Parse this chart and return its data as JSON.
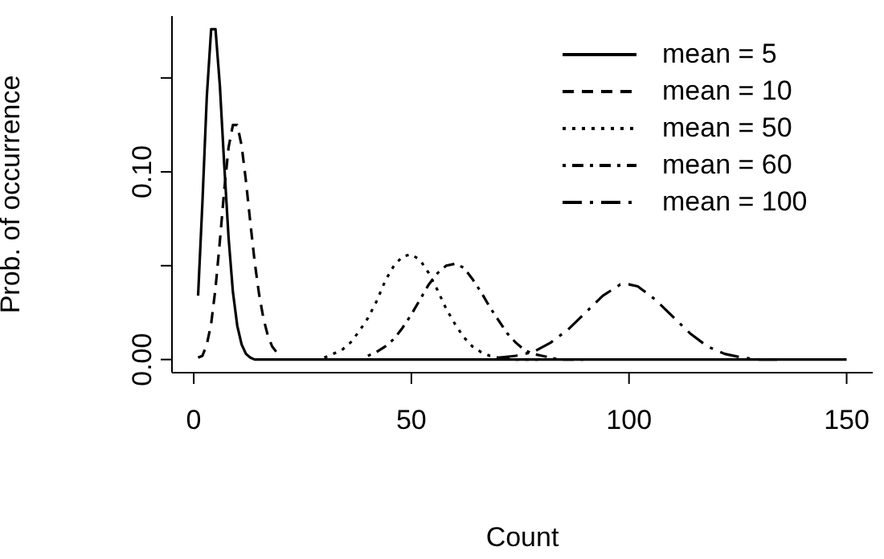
{
  "chart_data": {
    "type": "line",
    "xlabel": "Count",
    "ylabel": "Prob. of occurrence",
    "xlim": [
      -5,
      156
    ],
    "ylim": [
      -0.007,
      0.183
    ],
    "xticks": [
      0,
      50,
      100,
      150
    ],
    "yticks": [
      {
        "value": 0,
        "label": "0.00"
      },
      {
        "value": 0.05,
        "label": null
      },
      {
        "value": 0.1,
        "label": "0.10"
      },
      {
        "value": 0.15,
        "label": null
      }
    ],
    "legend": "top right",
    "marker": "none",
    "series": [
      {
        "name": "mean = 5",
        "color": "#000000",
        "line_style": "solid",
        "x": [
          1,
          2,
          3,
          4,
          5,
          6,
          7,
          8,
          9,
          10,
          11,
          12,
          13,
          14,
          15,
          20,
          150
        ],
        "values": [
          0.034,
          0.084,
          0.14,
          0.176,
          0.176,
          0.146,
          0.104,
          0.065,
          0.036,
          0.018,
          0.008,
          0.003,
          0.001,
          0,
          0,
          0,
          0
        ]
      },
      {
        "name": "mean = 10",
        "color": "#000000",
        "line_style": "dashed",
        "x": [
          1,
          2,
          3,
          4,
          5,
          6,
          7,
          8,
          9,
          10,
          11,
          12,
          13,
          14,
          15,
          16,
          17,
          18,
          19,
          20
        ],
        "values": [
          0.001,
          0.002,
          0.008,
          0.019,
          0.038,
          0.063,
          0.09,
          0.113,
          0.125,
          0.125,
          0.114,
          0.095,
          0.073,
          0.052,
          0.035,
          0.022,
          0.013,
          0.007,
          0.004,
          0.002
        ]
      },
      {
        "name": "mean = 50",
        "color": "#000000",
        "line_style": "dotted",
        "x": [
          30,
          32,
          34,
          36,
          38,
          40,
          42,
          44,
          46,
          48,
          50,
          52,
          54,
          56,
          58,
          60,
          62,
          64,
          66,
          68,
          70,
          74,
          80
        ],
        "values": [
          0.001,
          0.003,
          0.005,
          0.009,
          0.015,
          0.022,
          0.031,
          0.042,
          0.05,
          0.055,
          0.056,
          0.053,
          0.046,
          0.037,
          0.027,
          0.019,
          0.012,
          0.007,
          0.004,
          0.002,
          0.001,
          0,
          0
        ]
      },
      {
        "name": "mean = 60",
        "color": "#000000",
        "line_style": "dashdot",
        "x": [
          40,
          42,
          44,
          46,
          48,
          50,
          52,
          54,
          56,
          58,
          60,
          62,
          64,
          66,
          68,
          70,
          72,
          74,
          76,
          78,
          80,
          84,
          90
        ],
        "values": [
          0.002,
          0.004,
          0.007,
          0.011,
          0.017,
          0.024,
          0.032,
          0.04,
          0.046,
          0.05,
          0.051,
          0.049,
          0.043,
          0.036,
          0.028,
          0.021,
          0.014,
          0.009,
          0.005,
          0.003,
          0.002,
          0,
          0
        ]
      },
      {
        "name": "mean = 100",
        "color": "#000000",
        "line_style": "longdash",
        "x": [
          70,
          74,
          78,
          82,
          86,
          90,
          94,
          98,
          100,
          102,
          106,
          110,
          114,
          118,
          122,
          126,
          130,
          134
        ],
        "values": [
          0.001,
          0.002,
          0.004,
          0.009,
          0.016,
          0.025,
          0.034,
          0.04,
          0.04,
          0.039,
          0.032,
          0.023,
          0.014,
          0.007,
          0.003,
          0.001,
          0,
          0
        ]
      }
    ]
  }
}
